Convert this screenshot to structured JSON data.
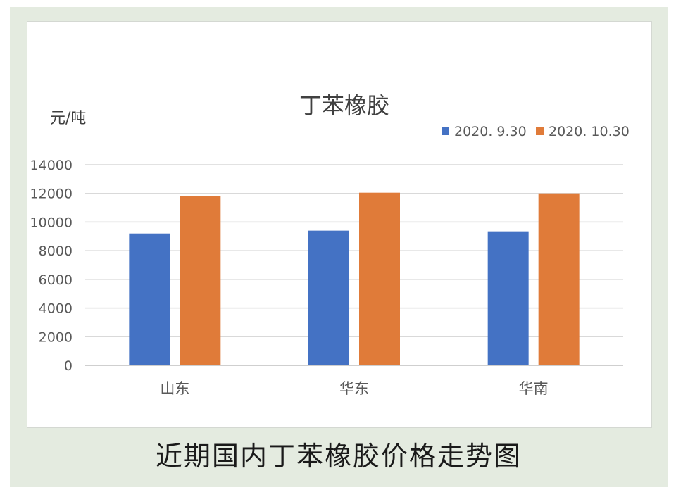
{
  "chart_data": {
    "type": "bar",
    "title": "丁苯橡胶",
    "ylabel": "元/吨",
    "xlabel": "",
    "ylim": [
      0,
      14000
    ],
    "yticks": [
      0,
      2000,
      4000,
      6000,
      8000,
      10000,
      12000,
      14000
    ],
    "categories": [
      "山东",
      "华东",
      "华南"
    ],
    "series": [
      {
        "name": "2020. 9.30",
        "color": "#4472c4",
        "values": [
          9200,
          9400,
          9350
        ]
      },
      {
        "name": "2020. 10.30",
        "color": "#e07b39",
        "values": [
          11800,
          12050,
          12000
        ]
      }
    ],
    "grid": true,
    "legend_position": "top-right"
  },
  "caption": "近期国内丁苯橡胶价格走势图"
}
